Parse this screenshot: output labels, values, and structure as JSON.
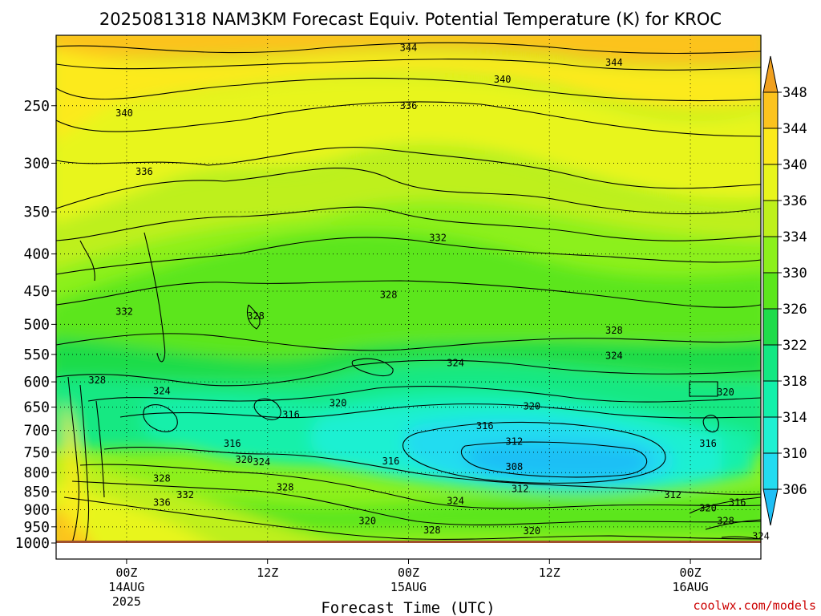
{
  "chart_data": {
    "type": "heatmap",
    "title": "2025081318 NAM3KM Forecast Equiv. Potential Temperature (K) for KROC",
    "xlabel": "Forecast Time (UTC)",
    "ylabel": "",
    "x_ticks": [
      {
        "hour": 6,
        "label": "00Z",
        "sub": [
          "14AUG",
          "2025"
        ]
      },
      {
        "hour": 18,
        "label": "12Z",
        "sub": []
      },
      {
        "hour": 30,
        "label": "00Z",
        "sub": [
          "15AUG"
        ]
      },
      {
        "hour": 42,
        "label": "12Z",
        "sub": []
      },
      {
        "hour": 54,
        "label": "00Z",
        "sub": [
          "16AUG"
        ]
      }
    ],
    "xlim": [
      0,
      60
    ],
    "y_ticks": [
      250,
      300,
      350,
      400,
      450,
      500,
      550,
      600,
      650,
      700,
      750,
      800,
      850,
      900,
      950,
      1000
    ],
    "ylim": [
      1000,
      200
    ],
    "y_scale": "log-pressure",
    "grid": true,
    "colorbar": {
      "levels": [
        306,
        310,
        314,
        318,
        322,
        326,
        330,
        334,
        336,
        340,
        344,
        348
      ],
      "labels": [
        "348",
        "344",
        "340",
        "336",
        "334",
        "330",
        "326",
        "322",
        "318",
        "314",
        "310",
        "306"
      ],
      "colors": [
        "#1fbff5",
        "#23dcf0",
        "#1ff0d2",
        "#12f0aa",
        "#12e882",
        "#1fdc4a",
        "#5ce61c",
        "#8cf01c",
        "#bef01c",
        "#e8f51c",
        "#fcea1c",
        "#fcc31e",
        "#f0a01e"
      ]
    },
    "contour_labels": [
      {
        "text": "344",
        "hour": 30.0,
        "p": 208
      },
      {
        "text": "344",
        "hour": 47.5,
        "p": 218
      },
      {
        "text": "340",
        "hour": 38.0,
        "p": 230
      },
      {
        "text": "340",
        "hour": 5.8,
        "p": 256
      },
      {
        "text": "336",
        "hour": 30.0,
        "p": 250
      },
      {
        "text": "336",
        "hour": 7.5,
        "p": 308
      },
      {
        "text": "332",
        "hour": 32.5,
        "p": 380
      },
      {
        "text": "332",
        "hour": 5.8,
        "p": 480
      },
      {
        "text": "328",
        "hour": 28.3,
        "p": 455
      },
      {
        "text": "328",
        "hour": 17.0,
        "p": 487
      },
      {
        "text": "328",
        "hour": 47.5,
        "p": 510
      },
      {
        "text": "328",
        "hour": 3.5,
        "p": 597
      },
      {
        "text": "324",
        "hour": 9.0,
        "p": 618
      },
      {
        "text": "324",
        "hour": 34.0,
        "p": 565
      },
      {
        "text": "324",
        "hour": 47.5,
        "p": 552
      },
      {
        "text": "320",
        "hour": 24.0,
        "p": 642
      },
      {
        "text": "320",
        "hour": 40.5,
        "p": 648
      },
      {
        "text": "320",
        "hour": 57.0,
        "p": 620
      },
      {
        "text": "316",
        "hour": 20.0,
        "p": 666
      },
      {
        "text": "316",
        "hour": 36.5,
        "p": 690
      },
      {
        "text": "316",
        "hour": 15.0,
        "p": 730
      },
      {
        "text": "316",
        "hour": 28.5,
        "p": 772
      },
      {
        "text": "316",
        "hour": 55.5,
        "p": 730
      },
      {
        "text": "320",
        "hour": 16.0,
        "p": 768
      },
      {
        "text": "324",
        "hour": 17.5,
        "p": 774
      },
      {
        "text": "312",
        "hour": 39.0,
        "p": 725
      },
      {
        "text": "308",
        "hour": 39.0,
        "p": 785
      },
      {
        "text": "312",
        "hour": 39.5,
        "p": 842
      },
      {
        "text": "312",
        "hour": 52.5,
        "p": 858
      },
      {
        "text": "328",
        "hour": 9.0,
        "p": 815
      },
      {
        "text": "328",
        "hour": 19.5,
        "p": 838
      },
      {
        "text": "332",
        "hour": 11.0,
        "p": 858
      },
      {
        "text": "336",
        "hour": 9.0,
        "p": 880
      },
      {
        "text": "324",
        "hour": 34.0,
        "p": 875
      },
      {
        "text": "320",
        "hour": 26.5,
        "p": 933
      },
      {
        "text": "320",
        "hour": 55.5,
        "p": 895
      },
      {
        "text": "316",
        "hour": 58.0,
        "p": 880
      },
      {
        "text": "320",
        "hour": 40.5,
        "p": 962
      },
      {
        "text": "328",
        "hour": 32.0,
        "p": 960
      },
      {
        "text": "328",
        "hour": 57.0,
        "p": 932
      },
      {
        "text": "324",
        "hour": 60.0,
        "p": 978
      }
    ]
  },
  "credit": "coolwx.com/models"
}
